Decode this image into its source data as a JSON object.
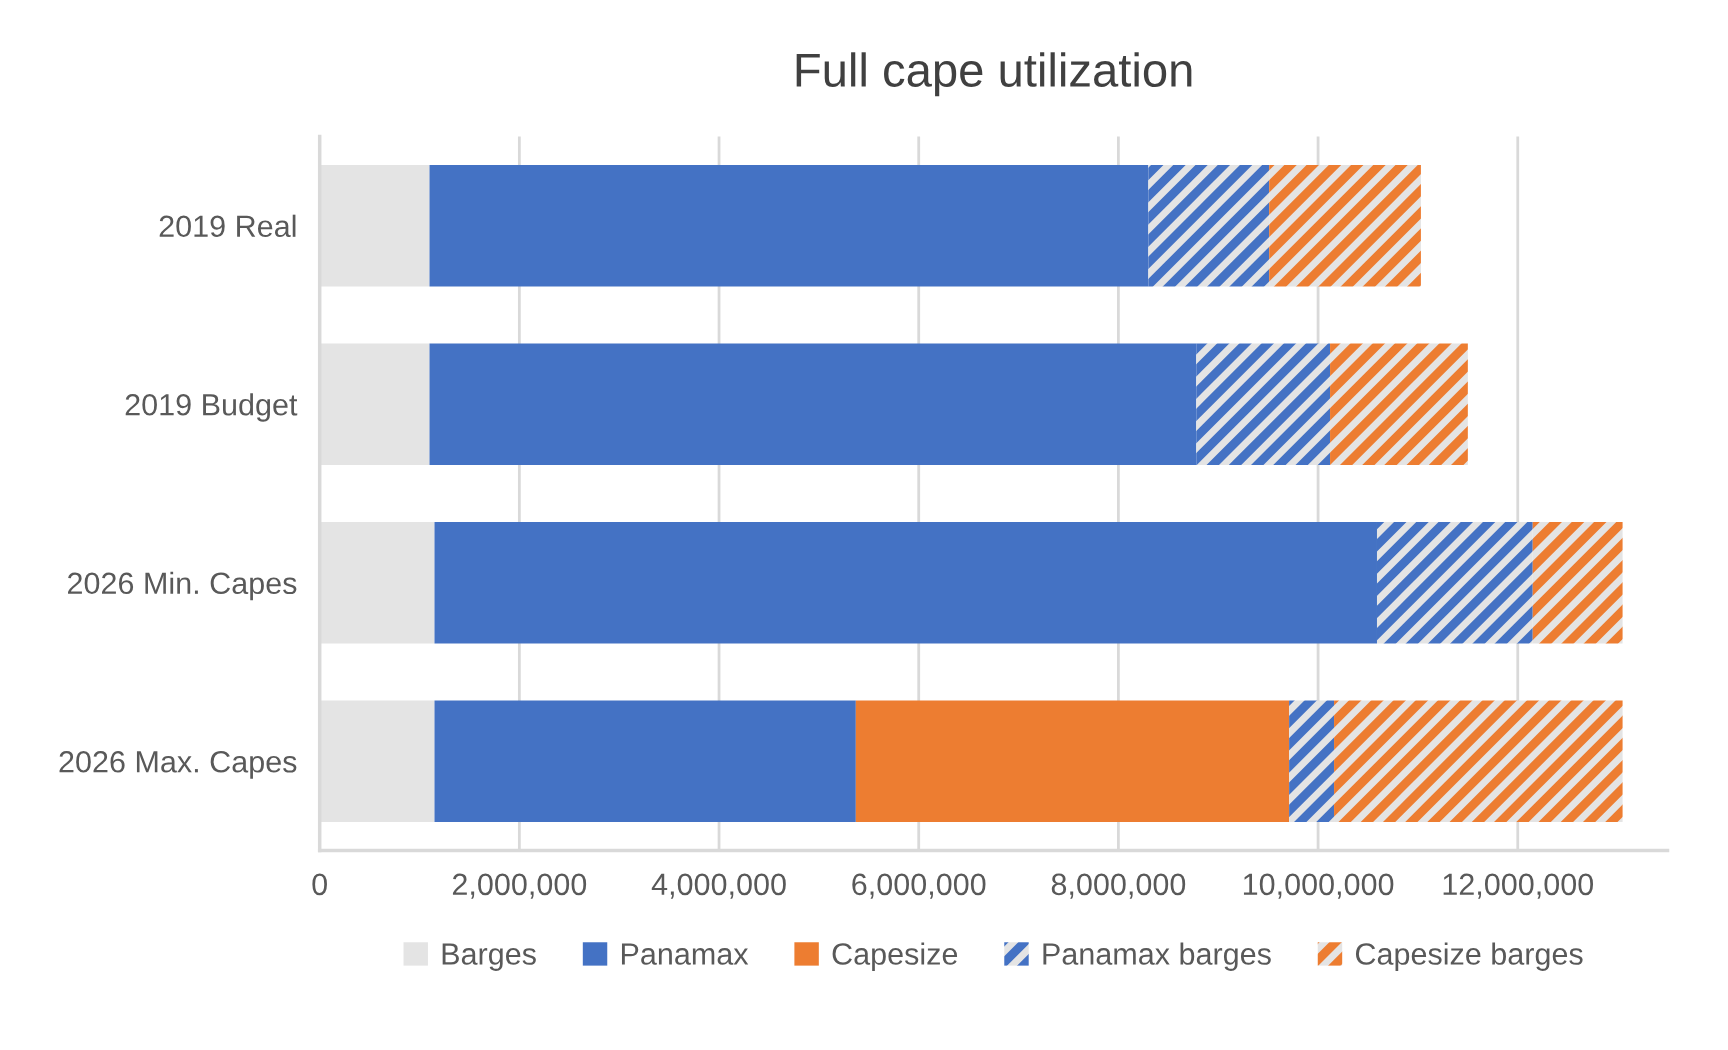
{
  "chart_data": {
    "type": "bar",
    "orientation": "horizontal",
    "stacked": true,
    "title": "Full cape utilization",
    "categories": [
      "2019 Real",
      "2019 Budget",
      "2026 Min. Capes",
      "2026 Max. Capes"
    ],
    "series": [
      {
        "name": "Barges",
        "color": "#e4e4e4",
        "values": [
          1100000,
          1100000,
          1150000,
          1150000
        ]
      },
      {
        "name": "Panamax",
        "color": "#4472c4",
        "values": [
          7200000,
          7680000,
          9440000,
          4220000
        ]
      },
      {
        "name": "Capesize",
        "color": "#ed7d31",
        "values": [
          0,
          0,
          0,
          4340000
        ]
      },
      {
        "name": "Panamax barges",
        "color": "#4472c4",
        "values": [
          1210000,
          1340000,
          1560000,
          450000
        ]
      },
      {
        "name": "Capesize barges",
        "color": "#ed7d31",
        "values": [
          1520000,
          1380000,
          900000,
          2890000
        ]
      }
    ],
    "xlim": [
      0,
      13500000
    ],
    "xticks": [
      {
        "value": 0,
        "label": "0"
      },
      {
        "value": 2000000,
        "label": "2,000,000"
      },
      {
        "value": 4000000,
        "label": "4,000,000"
      },
      {
        "value": 6000000,
        "label": "6,000,000"
      },
      {
        "value": 8000000,
        "label": "8,000,000"
      },
      {
        "value": 10000000,
        "label": "10,000,000"
      },
      {
        "value": 12000000,
        "label": "12,000,000"
      }
    ],
    "grid": "x",
    "legend": "bottom"
  }
}
